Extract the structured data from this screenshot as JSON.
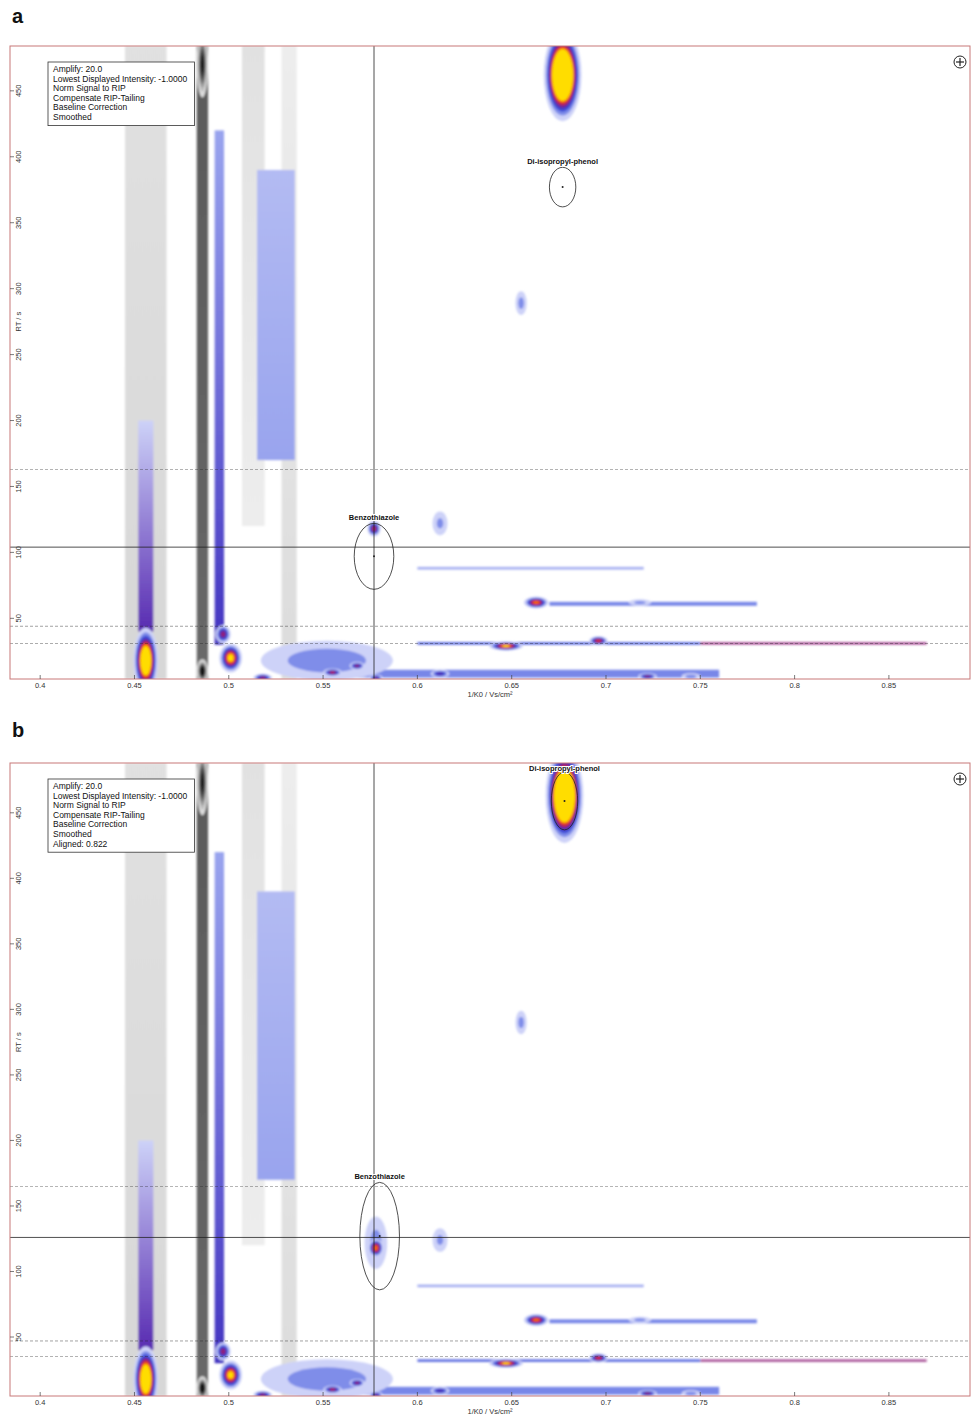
{
  "chart_data": [
    {
      "type": "heatmap",
      "panel_label": "a",
      "info": [
        "Amplify: 20.0",
        "Lowest Displayed Intensity: -1.0000",
        "Norm Signal to RIP",
        "Compensate RIP-Tailing",
        "Baseline Correction",
        "Smoothed"
      ],
      "x_label": "1/K0 / Vs/cm²",
      "y_label": "RT / s",
      "xlim": [
        0.384,
        0.893
      ],
      "ylim": [
        4,
        484
      ],
      "xticks": [
        0.4,
        0.45,
        0.5,
        0.55,
        0.6,
        0.65,
        0.7,
        0.75,
        0.8,
        0.85
      ],
      "yticks": [
        50,
        100,
        150,
        200,
        250,
        300,
        350,
        400,
        450
      ],
      "zlim": [
        -1,
        1
      ],
      "streaks": [
        {
          "x": 0.456,
          "x_width": 0.022,
          "rt_from": 4,
          "rt_to": 484,
          "intensity_from": -0.14,
          "intensity_to": -0.1
        },
        {
          "x": 0.532,
          "x_width": 0.008,
          "rt_from": 4,
          "rt_to": 484,
          "intensity_from": -0.12,
          "intensity_to": -0.06
        },
        {
          "x": 0.513,
          "x_width": 0.012,
          "rt_from": 120,
          "rt_to": 484,
          "intensity_from": -0.06,
          "intensity_to": -0.1
        },
        {
          "x": 0.486,
          "x_width": 0.006,
          "rt_from": 4,
          "rt_to": 484,
          "intensity_from": -0.55,
          "intensity_to": -0.6
        },
        {
          "x": 0.456,
          "x_width": 0.008,
          "rt_from": 40,
          "rt_to": 200,
          "intensity_from": 0.5,
          "intensity_to": 0.12
        },
        {
          "x": 0.495,
          "x_width": 0.005,
          "rt_from": 30,
          "rt_to": 420,
          "intensity_from": 0.45,
          "intensity_to": 0.2
        },
        {
          "x": 0.525,
          "x_width": 0.02,
          "rt_from": 170,
          "rt_to": 390,
          "intensity_from": 0.2,
          "intensity_to": 0.16
        }
      ],
      "hstreaks": [
        {
          "rt": 61,
          "rt_width": 3,
          "x_from": 0.67,
          "x_to": 0.78,
          "intensity": 0.25
        },
        {
          "rt": 31,
          "rt_width": 2,
          "x_from": 0.6,
          "x_to": 0.75,
          "intensity": 0.3
        },
        {
          "rt": 31,
          "rt_width": 1.5,
          "x_from": 0.75,
          "x_to": 0.87,
          "intensity": 0.6
        },
        {
          "rt": 88,
          "rt_width": 2,
          "x_from": 0.6,
          "x_to": 0.72,
          "intensity": 0.18
        },
        {
          "rt": 8,
          "rt_width": 6,
          "x_from": 0.55,
          "x_to": 0.76,
          "intensity": 0.25
        }
      ],
      "peaks": [
        {
          "x": 0.552,
          "rt": 18,
          "intensity": 0.35,
          "x_width": 0.07,
          "rt_width": 30
        },
        {
          "x": 0.677,
          "rt": 462,
          "intensity": 2.5,
          "x_width": 0.02,
          "rt_width": 70
        },
        {
          "x": 0.456,
          "rt": 18,
          "intensity": 1.6,
          "x_width": 0.013,
          "rt_width": 50
        },
        {
          "x": 0.501,
          "rt": 20,
          "intensity": 1.1,
          "x_width": 0.012,
          "rt_width": 22
        },
        {
          "x": 0.497,
          "rt": 38,
          "intensity": 0.7,
          "x_width": 0.008,
          "rt_width": 14
        },
        {
          "x": 0.518,
          "rt": 5,
          "intensity": 0.7,
          "x_width": 0.01,
          "rt_width": 6
        },
        {
          "x": 0.555,
          "rt": 9,
          "intensity": 0.75,
          "x_width": 0.01,
          "rt_width": 6
        },
        {
          "x": 0.568,
          "rt": 14,
          "intensity": 0.7,
          "x_width": 0.008,
          "rt_width": 6
        },
        {
          "x": 0.578,
          "rt": 5,
          "intensity": 0.65,
          "x_width": 0.007,
          "rt_width": 5
        },
        {
          "x": 0.612,
          "rt": 8,
          "intensity": 0.6,
          "x_width": 0.01,
          "rt_width": 6
        },
        {
          "x": 0.577,
          "rt": 118,
          "intensity": 0.75,
          "x_width": 0.007,
          "rt_width": 12
        },
        {
          "x": 0.663,
          "rt": 62,
          "intensity": 0.95,
          "x_width": 0.013,
          "rt_width": 9
        },
        {
          "x": 0.647,
          "rt": 29,
          "intensity": 1.05,
          "x_width": 0.018,
          "rt_width": 7
        },
        {
          "x": 0.696,
          "rt": 33,
          "intensity": 0.85,
          "x_width": 0.01,
          "rt_width": 7
        },
        {
          "x": 0.722,
          "rt": 6,
          "intensity": 0.7,
          "x_width": 0.01,
          "rt_width": 5
        },
        {
          "x": 0.745,
          "rt": 6,
          "intensity": 0.35,
          "x_width": 0.01,
          "rt_width": 5
        },
        {
          "x": 0.718,
          "rt": 62,
          "intensity": 0.3,
          "x_width": 0.012,
          "rt_width": 5
        },
        {
          "x": 0.655,
          "rt": 289,
          "intensity": 0.3,
          "x_width": 0.006,
          "rt_width": 18
        },
        {
          "x": 0.612,
          "rt": 122,
          "intensity": 0.28,
          "x_width": 0.008,
          "rt_width": 18
        },
        {
          "x": 0.486,
          "rt": 10,
          "intensity": -1.2,
          "x_width": 0.006,
          "rt_width": 18
        },
        {
          "x": 0.486,
          "rt": 470,
          "intensity": -1.0,
          "x_width": 0.006,
          "rt_width": 50
        }
      ],
      "dashed_rt": [
        44,
        31,
        163
      ],
      "crosshair": {
        "x": 0.577,
        "rt": 104
      },
      "annotations": [
        {
          "label": "Benzothiazole",
          "x": 0.577,
          "rt": 97,
          "x_radius": 0.0105,
          "rt_radius": 25
        },
        {
          "label": "Di-isopropyl-phenol",
          "x": 0.677,
          "rt": 377,
          "x_radius": 0.007,
          "rt_radius": 15
        }
      ]
    },
    {
      "type": "heatmap",
      "panel_label": "b",
      "info": [
        "Amplify: 20.0",
        "Lowest Displayed Intensity: -1.0000",
        "Norm Signal to RIP",
        "Compensate RIP-Tailing",
        "Baseline Correction",
        "Smoothed",
        "Aligned: 0.822"
      ],
      "x_label": "1/K0 / Vs/cm²",
      "y_label": "RT / s",
      "xlim": [
        0.384,
        0.893
      ],
      "ylim": [
        5,
        488
      ],
      "xticks": [
        0.4,
        0.45,
        0.5,
        0.55,
        0.6,
        0.65,
        0.7,
        0.75,
        0.8,
        0.85
      ],
      "yticks": [
        50,
        100,
        150,
        200,
        250,
        300,
        350,
        400,
        450
      ],
      "zlim": [
        -1,
        1
      ],
      "streaks": [
        {
          "x": 0.456,
          "x_width": 0.022,
          "rt_from": 5,
          "rt_to": 488,
          "intensity_from": -0.14,
          "intensity_to": -0.1
        },
        {
          "x": 0.532,
          "x_width": 0.008,
          "rt_from": 5,
          "rt_to": 488,
          "intensity_from": -0.12,
          "intensity_to": -0.06
        },
        {
          "x": 0.513,
          "x_width": 0.012,
          "rt_from": 120,
          "rt_to": 488,
          "intensity_from": -0.06,
          "intensity_to": -0.1
        },
        {
          "x": 0.486,
          "x_width": 0.006,
          "rt_from": 5,
          "rt_to": 488,
          "intensity_from": -0.55,
          "intensity_to": -0.6
        },
        {
          "x": 0.456,
          "x_width": 0.008,
          "rt_from": 40,
          "rt_to": 200,
          "intensity_from": 0.5,
          "intensity_to": 0.12
        },
        {
          "x": 0.495,
          "x_width": 0.005,
          "rt_from": 30,
          "rt_to": 420,
          "intensity_from": 0.45,
          "intensity_to": 0.2
        },
        {
          "x": 0.525,
          "x_width": 0.02,
          "rt_from": 170,
          "rt_to": 390,
          "intensity_from": 0.2,
          "intensity_to": 0.16
        }
      ],
      "hstreaks": [
        {
          "rt": 62,
          "rt_width": 3,
          "x_from": 0.67,
          "x_to": 0.78,
          "intensity": 0.25
        },
        {
          "rt": 32,
          "rt_width": 2,
          "x_from": 0.6,
          "x_to": 0.75,
          "intensity": 0.3
        },
        {
          "rt": 32,
          "rt_width": 1.5,
          "x_from": 0.75,
          "x_to": 0.87,
          "intensity": 0.6
        },
        {
          "rt": 89,
          "rt_width": 2,
          "x_from": 0.6,
          "x_to": 0.72,
          "intensity": 0.18
        },
        {
          "rt": 9,
          "rt_width": 6,
          "x_from": 0.55,
          "x_to": 0.76,
          "intensity": 0.25
        }
      ],
      "peaks": [
        {
          "x": 0.552,
          "rt": 18,
          "intensity": 0.35,
          "x_width": 0.07,
          "rt_width": 30
        },
        {
          "x": 0.678,
          "rt": 463,
          "intensity": 2.5,
          "x_width": 0.02,
          "rt_width": 72
        },
        {
          "x": 0.456,
          "rt": 18,
          "intensity": 1.6,
          "x_width": 0.013,
          "rt_width": 50
        },
        {
          "x": 0.501,
          "rt": 21,
          "intensity": 1.1,
          "x_width": 0.012,
          "rt_width": 22
        },
        {
          "x": 0.497,
          "rt": 39,
          "intensity": 0.7,
          "x_width": 0.008,
          "rt_width": 14
        },
        {
          "x": 0.518,
          "rt": 6,
          "intensity": 0.7,
          "x_width": 0.01,
          "rt_width": 6
        },
        {
          "x": 0.555,
          "rt": 10,
          "intensity": 0.75,
          "x_width": 0.01,
          "rt_width": 6
        },
        {
          "x": 0.568,
          "rt": 15,
          "intensity": 0.7,
          "x_width": 0.008,
          "rt_width": 6
        },
        {
          "x": 0.578,
          "rt": 6,
          "intensity": 0.65,
          "x_width": 0.007,
          "rt_width": 5
        },
        {
          "x": 0.612,
          "rt": 9,
          "intensity": 0.6,
          "x_width": 0.01,
          "rt_width": 6
        },
        {
          "x": 0.578,
          "rt": 122,
          "intensity": 0.3,
          "x_width": 0.012,
          "rt_width": 40
        },
        {
          "x": 0.578,
          "rt": 118,
          "intensity": 0.95,
          "x_width": 0.008,
          "rt_width": 14
        },
        {
          "x": 0.663,
          "rt": 63,
          "intensity": 0.95,
          "x_width": 0.013,
          "rt_width": 9
        },
        {
          "x": 0.647,
          "rt": 30,
          "intensity": 1.05,
          "x_width": 0.018,
          "rt_width": 7
        },
        {
          "x": 0.696,
          "rt": 34,
          "intensity": 0.85,
          "x_width": 0.01,
          "rt_width": 7
        },
        {
          "x": 0.722,
          "rt": 7,
          "intensity": 0.7,
          "x_width": 0.01,
          "rt_width": 5
        },
        {
          "x": 0.745,
          "rt": 7,
          "intensity": 0.35,
          "x_width": 0.01,
          "rt_width": 5
        },
        {
          "x": 0.718,
          "rt": 63,
          "intensity": 0.3,
          "x_width": 0.012,
          "rt_width": 5
        },
        {
          "x": 0.655,
          "rt": 290,
          "intensity": 0.3,
          "x_width": 0.006,
          "rt_width": 18
        },
        {
          "x": 0.612,
          "rt": 124,
          "intensity": 0.28,
          "x_width": 0.008,
          "rt_width": 18
        },
        {
          "x": 0.486,
          "rt": 11,
          "intensity": -1.2,
          "x_width": 0.006,
          "rt_width": 18
        },
        {
          "x": 0.486,
          "rt": 473,
          "intensity": -1.0,
          "x_width": 0.006,
          "rt_width": 50
        }
      ],
      "dashed_rt": [
        47,
        35,
        165
      ],
      "crosshair": {
        "x": 0.577,
        "rt": 126
      },
      "annotations": [
        {
          "label": "Benzothiazole",
          "x": 0.58,
          "rt": 127,
          "x_radius": 0.0105,
          "rt_radius": 41
        },
        {
          "label": "Di-isopropyl-phenol",
          "x": 0.678,
          "rt": 459,
          "x_radius": 0.007,
          "rt_radius": 22
        }
      ]
    }
  ]
}
